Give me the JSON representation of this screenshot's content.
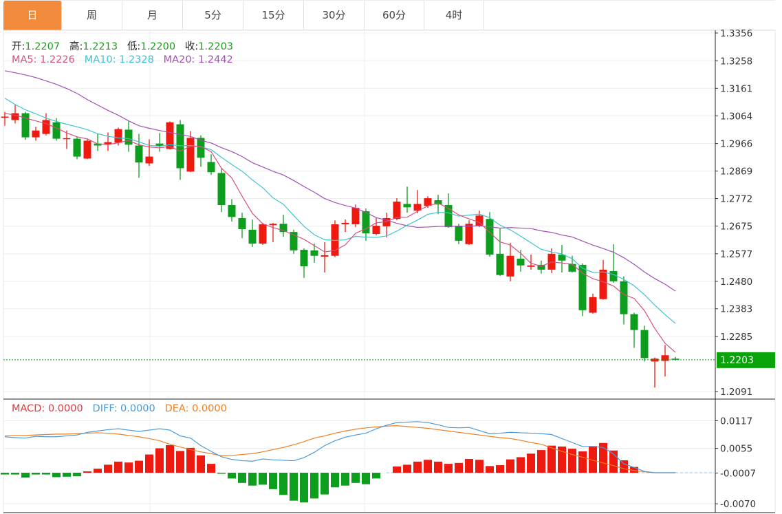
{
  "tabs": [
    {
      "label": "日",
      "active": true
    },
    {
      "label": "周",
      "active": false
    },
    {
      "label": "月",
      "active": false
    },
    {
      "label": "5分",
      "active": false
    },
    {
      "label": "15分",
      "active": false
    },
    {
      "label": "30分",
      "active": false
    },
    {
      "label": "60分",
      "active": false
    },
    {
      "label": "4时",
      "active": false
    }
  ],
  "ohlc_info": {
    "open_label": "开:",
    "open": "1.2207",
    "high_label": "高:",
    "high": "1.2213",
    "low_label": "低:",
    "low": "1.2200",
    "close_label": "收:",
    "close": "1.2203"
  },
  "ma_info": {
    "ma5": "MA5: 1.2226",
    "ma10": "MA10: 1.2328",
    "ma20": "MA20: 1.2442"
  },
  "macd_info": {
    "macd": "MACD: 0.0000",
    "diff": "DIFF: 0.0000",
    "dea": "DEA: 0.0000"
  },
  "colors": {
    "up": "#ee1a10",
    "down": "#0c9e1c",
    "ma5": "#d6507e",
    "ma10": "#3fc3d2",
    "ma20": "#a24fb4",
    "diff": "#4a9ad8",
    "dea": "#ef7e22",
    "active_tab": "#f28a3c",
    "last_price_badge": "#0aa40a"
  },
  "chart_data": [
    {
      "type": "candlestick",
      "price_ticks": [
        "1.3356",
        "1.3258",
        "1.3161",
        "1.3064",
        "1.2966",
        "1.2869",
        "1.2772",
        "1.2675",
        "1.2577",
        "1.2480",
        "1.2383",
        "1.2285",
        "1.2091"
      ],
      "ylim": [
        1.2091,
        1.3356
      ],
      "last_price": "1.2203",
      "grid": true,
      "ohlc": [
        [
          1.306,
          1.3078,
          1.3029,
          1.3061
        ],
        [
          1.3049,
          1.3102,
          1.3037,
          1.3073
        ],
        [
          1.3073,
          1.3078,
          1.2979,
          1.2988
        ],
        [
          1.2988,
          1.3025,
          1.2976,
          1.3012
        ],
        [
          1.3,
          1.3073,
          1.2995,
          1.3049
        ],
        [
          1.3041,
          1.3056,
          1.2976,
          1.2983
        ],
        [
          1.2983,
          1.3012,
          1.2947,
          1.2985
        ],
        [
          1.2983,
          1.2991,
          1.2911,
          1.292
        ],
        [
          1.2913,
          1.2983,
          1.2911,
          1.2976
        ],
        [
          1.2966,
          1.3,
          1.294,
          1.2959
        ],
        [
          1.2964,
          1.3005,
          1.294,
          1.2971
        ],
        [
          1.2969,
          1.3022,
          1.2959,
          1.3017
        ],
        [
          1.3015,
          1.3044,
          1.2937,
          1.2962
        ],
        [
          1.2959,
          1.3,
          1.2845,
          1.2899
        ],
        [
          1.2896,
          1.2981,
          1.2887,
          1.292
        ],
        [
          1.2966,
          1.3003,
          1.2937,
          1.2957
        ],
        [
          1.2947,
          1.3044,
          1.2945,
          1.3041
        ],
        [
          1.3034,
          1.3049,
          1.2838,
          1.2879
        ],
        [
          1.2867,
          1.301,
          1.2865,
          1.2986
        ],
        [
          1.2986,
          1.2995,
          1.2884,
          1.2916
        ],
        [
          1.2901,
          1.2928,
          1.2855,
          1.2865
        ],
        [
          1.2862,
          1.2877,
          1.2724,
          1.2749
        ],
        [
          1.2749,
          1.277,
          1.2691,
          1.2707
        ],
        [
          1.2703,
          1.2722,
          1.2632,
          1.2664
        ],
        [
          1.2662,
          1.2698,
          1.2601,
          1.2613
        ],
        [
          1.2613,
          1.2686,
          1.2608,
          1.2681
        ],
        [
          1.2678,
          1.2686,
          1.2618,
          1.2683
        ],
        [
          1.2683,
          1.2715,
          1.2637,
          1.2654
        ],
        [
          1.2654,
          1.2662,
          1.2577,
          1.2589
        ],
        [
          1.2591,
          1.2596,
          1.2492,
          1.2533
        ],
        [
          1.2589,
          1.2613,
          1.2545,
          1.257
        ],
        [
          1.2567,
          1.2618,
          1.2511,
          1.2572
        ],
        [
          1.257,
          1.2695,
          1.2565,
          1.2681
        ],
        [
          1.2681,
          1.2698,
          1.2654,
          1.2686
        ],
        [
          1.2681,
          1.2751,
          1.2671,
          1.2739
        ],
        [
          1.2727,
          1.2737,
          1.2623,
          1.2649
        ],
        [
          1.2647,
          1.2703,
          1.2642,
          1.2676
        ],
        [
          1.2674,
          1.2722,
          1.2635,
          1.2703
        ],
        [
          1.27,
          1.2773,
          1.2695,
          1.2761
        ],
        [
          1.2753,
          1.2814,
          1.2722,
          1.2741
        ],
        [
          1.2729,
          1.2802,
          1.272,
          1.2753
        ],
        [
          1.2746,
          1.278,
          1.2739,
          1.2773
        ],
        [
          1.2766,
          1.2785,
          1.2717,
          1.2751
        ],
        [
          1.2749,
          1.279,
          1.2669,
          1.2671
        ],
        [
          1.2676,
          1.2683,
          1.2611,
          1.2623
        ],
        [
          1.2611,
          1.2695,
          1.2608,
          1.2683
        ],
        [
          1.2676,
          1.2729,
          1.2671,
          1.2712
        ],
        [
          1.27,
          1.2724,
          1.2567,
          1.2574
        ],
        [
          1.2577,
          1.2666,
          1.2499,
          1.2502
        ],
        [
          1.2497,
          1.2616,
          1.248,
          1.257
        ],
        [
          1.256,
          1.2591,
          1.2514,
          1.2536
        ],
        [
          1.2531,
          1.2574,
          1.2521,
          1.2536
        ],
        [
          1.2538,
          1.2553,
          1.2507,
          1.2521
        ],
        [
          1.2521,
          1.2596,
          1.2509,
          1.2577
        ],
        [
          1.2574,
          1.2608,
          1.2511,
          1.2553
        ],
        [
          1.2541,
          1.257,
          1.2511,
          1.2514
        ],
        [
          1.2538,
          1.2543,
          1.2357,
          1.2378
        ],
        [
          1.2369,
          1.2436,
          1.2366,
          1.2424
        ],
        [
          1.2417,
          1.2555,
          1.2415,
          1.2521
        ],
        [
          1.2516,
          1.2611,
          1.2475,
          1.248
        ],
        [
          1.248,
          1.2497,
          1.2328,
          1.2364
        ],
        [
          1.2364,
          1.2369,
          1.2245,
          1.2308
        ],
        [
          1.2308,
          1.2323,
          1.2197,
          1.2209
        ],
        [
          1.2197,
          1.2211,
          1.2105,
          1.2207
        ],
        [
          1.2199,
          1.2255,
          1.2144,
          1.2219
        ],
        [
          1.2207,
          1.2213,
          1.22,
          1.2203
        ]
      ],
      "ma_leading": {
        "ma5": [
          1.3073,
          1.3066,
          1.3056,
          1.3046
        ],
        "ma10": [
          1.3126,
          1.3104,
          1.3085,
          1.3071,
          1.3056,
          1.3044,
          1.3034,
          1.3025,
          1.3015
        ],
        "ma20": [
          1.3223,
          1.3216,
          1.3208,
          1.3199,
          1.3187,
          1.3175,
          1.316,
          1.3143,
          1.3121,
          1.3102,
          1.3083,
          1.3066,
          1.3046,
          1.3029,
          1.302,
          1.3012,
          1.3005,
          1.2998,
          1.2991
        ]
      }
    },
    {
      "type": "bar+line",
      "ticks": [
        "0.0117",
        "0.0055",
        "-0.0007",
        "-0.0070"
      ],
      "ylim": [
        -0.007,
        0.0117
      ],
      "macd": [
        -0.0004,
        -0.0004,
        -0.0011,
        -0.0004,
        -0.0004,
        -0.001,
        -0.0009,
        -0.0008,
        0.0003,
        0.0009,
        0.0018,
        0.0025,
        0.0023,
        0.0027,
        0.0041,
        0.0055,
        0.0062,
        0.0049,
        0.0056,
        0.0039,
        0.002,
        -0.0001,
        -0.0013,
        -0.0023,
        -0.0029,
        -0.0027,
        -0.0037,
        -0.005,
        -0.0063,
        -0.0067,
        -0.0058,
        -0.0049,
        -0.0033,
        -0.0029,
        -0.0023,
        -0.0026,
        -0.0013,
        0,
        0.0014,
        0.0018,
        0.0025,
        0.0029,
        0.0025,
        0.002,
        0.0022,
        0.0031,
        0.0029,
        0.0015,
        0.0017,
        0.003,
        0.0035,
        0.0043,
        0.0051,
        0.0061,
        0.0059,
        0.0054,
        0.0048,
        0.006,
        0.0067,
        0.005,
        0.0028,
        0.0013,
        0,
        0,
        0,
        0
      ],
      "diff": [
        0.0081,
        0.0079,
        0.0078,
        0.0082,
        0.0081,
        0.0081,
        0.0083,
        0.0085,
        0.0091,
        0.0094,
        0.0097,
        0.0099,
        0.0096,
        0.0093,
        0.0096,
        0.0099,
        0.0096,
        0.0083,
        0.0078,
        0.0061,
        0.0048,
        0.0036,
        0.003,
        0.0027,
        0.0026,
        0.0031,
        0.0029,
        0.0028,
        0.0027,
        0.0034,
        0.0046,
        0.0061,
        0.0072,
        0.008,
        0.0085,
        0.0089,
        0.0099,
        0.0107,
        0.0113,
        0.0114,
        0.0115,
        0.0113,
        0.0108,
        0.0102,
        0.0101,
        0.0102,
        0.0095,
        0.0088,
        0.0089,
        0.0091,
        0.009,
        0.0089,
        0.0088,
        0.0086,
        0.0077,
        0.0068,
        0.0059,
        0.0059,
        0.0057,
        0.0042,
        0.002,
        0.0012,
        0.0003,
        0,
        0,
        0
      ],
      "dea": [
        0.0083,
        0.0084,
        0.0084,
        0.0085,
        0.0086,
        0.0087,
        0.0087,
        0.0088,
        0.0089,
        0.009,
        0.0089,
        0.0087,
        0.0084,
        0.0081,
        0.0077,
        0.0072,
        0.0064,
        0.0058,
        0.0052,
        0.0047,
        0.0043,
        0.0038,
        0.0039,
        0.0041,
        0.0043,
        0.0047,
        0.0052,
        0.0057,
        0.0063,
        0.007,
        0.0078,
        0.0083,
        0.0089,
        0.0094,
        0.0098,
        0.0101,
        0.0103,
        0.0105,
        0.0106,
        0.0104,
        0.0102,
        0.01,
        0.0097,
        0.0094,
        0.0091,
        0.0088,
        0.0085,
        0.0082,
        0.0079,
        0.0077,
        0.0073,
        0.0068,
        0.0064,
        0.0056,
        0.0048,
        0.0041,
        0.0035,
        0.0028,
        0.0022,
        0.0016,
        0.0009,
        0.0005,
        0.0002,
        0,
        0,
        0
      ]
    }
  ]
}
